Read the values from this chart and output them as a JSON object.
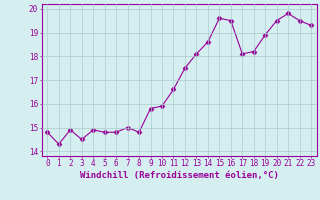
{
  "x": [
    0,
    1,
    2,
    3,
    4,
    5,
    6,
    7,
    8,
    9,
    10,
    11,
    12,
    13,
    14,
    15,
    16,
    17,
    18,
    19,
    20,
    21,
    22,
    23
  ],
  "y": [
    14.8,
    14.3,
    14.9,
    14.5,
    14.9,
    14.8,
    14.8,
    15.0,
    14.8,
    15.8,
    15.9,
    16.6,
    17.5,
    18.1,
    18.6,
    19.6,
    19.5,
    18.1,
    18.2,
    18.9,
    19.5,
    19.8,
    19.5,
    19.3
  ],
  "line_color": "#990099",
  "marker": "D",
  "marker_size": 2.5,
  "background_color": "#d5eef0",
  "grid_color": "#aacccc",
  "xlabel": "Windchill (Refroidissement éolien,°C)",
  "xlabel_fontsize": 6.5,
  "ylim": [
    13.8,
    20.2
  ],
  "xlim": [
    -0.5,
    23.5
  ],
  "yticks": [
    14,
    15,
    16,
    17,
    18,
    19,
    20
  ],
  "xticks": [
    0,
    1,
    2,
    3,
    4,
    5,
    6,
    7,
    8,
    9,
    10,
    11,
    12,
    13,
    14,
    15,
    16,
    17,
    18,
    19,
    20,
    21,
    22,
    23
  ],
  "tick_fontsize": 5.5,
  "tick_color": "#990099",
  "axis_color": "#990099"
}
